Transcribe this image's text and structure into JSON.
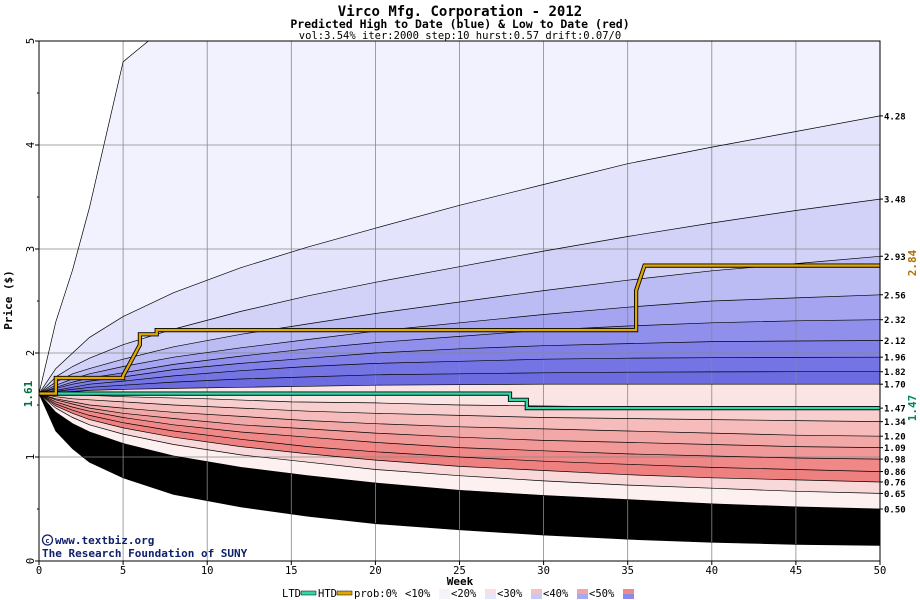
{
  "chart_data": {
    "type": "area",
    "title": "Virco Mfg. Corporation - 2012",
    "subtitle": "Predicted High to Date (blue) &  Low to Date (red)",
    "params": "vol:3.54% iter:2000 step:10 hurst:0.57 drift:0.07/0",
    "xlabel": "Week",
    "ylabel": "Price ($)",
    "xlim": [
      0,
      50
    ],
    "ylim": [
      0,
      5
    ],
    "x_ticks": [
      "0",
      "5",
      "10",
      "15",
      "20",
      "25",
      "30",
      "35",
      "40",
      "45",
      "50"
    ],
    "y_ticks": [
      "0",
      "1",
      "2",
      "3",
      "4",
      "5"
    ],
    "grid": true,
    "start_price_label": "1.61",
    "start_price": 1.61,
    "htd_end_label": "2.84",
    "ltd_end_label": "1.47",
    "right_labels": [
      "4.28",
      "3.48",
      "2.93",
      "2.56",
      "2.32",
      "2.12",
      "1.96",
      "1.82",
      "1.70",
      "1.47",
      "1.34",
      "1.20",
      "1.09",
      "0.98",
      "0.86",
      "0.76",
      "0.65",
      "0.50"
    ],
    "upper_quantiles": [
      {
        "x": [
          0,
          1,
          2,
          3,
          5,
          8,
          12,
          16,
          20,
          25,
          30,
          35,
          40,
          45,
          50
        ],
        "y": [
          1.61,
          2.3,
          2.8,
          3.4,
          4.8,
          5.2,
          5.2,
          5.2,
          5.2,
          5.2,
          5.2,
          5.2,
          5.2,
          5.2,
          5.2
        ]
      },
      {
        "x": [
          0,
          1,
          2,
          3,
          5,
          8,
          12,
          16,
          20,
          25,
          30,
          35,
          40,
          45,
          50
        ],
        "y": [
          1.61,
          1.85,
          2.0,
          2.15,
          2.35,
          2.58,
          2.82,
          3.02,
          3.2,
          3.42,
          3.62,
          3.82,
          3.98,
          4.13,
          4.28
        ]
      },
      {
        "x": [
          0,
          1,
          2,
          3,
          5,
          8,
          12,
          16,
          20,
          25,
          30,
          35,
          40,
          45,
          50
        ],
        "y": [
          1.61,
          1.77,
          1.87,
          1.95,
          2.08,
          2.23,
          2.4,
          2.55,
          2.68,
          2.83,
          2.98,
          3.12,
          3.25,
          3.37,
          3.48
        ]
      },
      {
        "x": [
          0,
          1,
          2,
          3,
          5,
          8,
          12,
          16,
          20,
          25,
          30,
          35,
          40,
          45,
          50
        ],
        "y": [
          1.61,
          1.72,
          1.8,
          1.85,
          1.94,
          2.06,
          2.18,
          2.28,
          2.38,
          2.49,
          2.6,
          2.7,
          2.79,
          2.86,
          2.93
        ]
      },
      {
        "x": [
          0,
          1,
          2,
          3,
          5,
          8,
          12,
          16,
          20,
          25,
          30,
          35,
          40,
          45,
          50
        ],
        "y": [
          1.61,
          1.69,
          1.75,
          1.8,
          1.87,
          1.96,
          2.05,
          2.13,
          2.21,
          2.29,
          2.37,
          2.44,
          2.5,
          2.53,
          2.56
        ]
      },
      {
        "x": [
          0,
          1,
          2,
          3,
          5,
          8,
          12,
          16,
          20,
          25,
          30,
          35,
          40,
          45,
          50
        ],
        "y": [
          1.61,
          1.67,
          1.72,
          1.76,
          1.81,
          1.89,
          1.97,
          2.04,
          2.1,
          2.16,
          2.22,
          2.26,
          2.29,
          2.31,
          2.32
        ]
      },
      {
        "x": [
          0,
          1,
          2,
          3,
          5,
          8,
          12,
          16,
          20,
          25,
          30,
          35,
          40,
          45,
          50
        ],
        "y": [
          1.61,
          1.66,
          1.7,
          1.73,
          1.77,
          1.84,
          1.9,
          1.95,
          2.0,
          2.04,
          2.07,
          2.09,
          2.11,
          2.115,
          2.12
        ]
      },
      {
        "x": [
          0,
          1,
          2,
          3,
          5,
          8,
          12,
          16,
          20,
          25,
          30,
          35,
          40,
          45,
          50
        ],
        "y": [
          1.61,
          1.64,
          1.67,
          1.7,
          1.73,
          1.78,
          1.83,
          1.87,
          1.9,
          1.92,
          1.94,
          1.95,
          1.955,
          1.958,
          1.96
        ]
      },
      {
        "x": [
          0,
          1,
          2,
          3,
          5,
          8,
          12,
          16,
          20,
          25,
          30,
          35,
          40,
          45,
          50
        ],
        "y": [
          1.61,
          1.63,
          1.65,
          1.67,
          1.69,
          1.72,
          1.75,
          1.77,
          1.79,
          1.8,
          1.81,
          1.815,
          1.818,
          1.82,
          1.82
        ]
      },
      {
        "x": [
          0,
          1,
          2,
          3,
          5,
          8,
          12,
          16,
          20,
          25,
          30,
          35,
          40,
          45,
          50
        ],
        "y": [
          1.61,
          1.62,
          1.63,
          1.64,
          1.65,
          1.66,
          1.67,
          1.68,
          1.69,
          1.695,
          1.7,
          1.7,
          1.7,
          1.7,
          1.7
        ]
      }
    ],
    "lower_quantiles": [
      {
        "x": [
          0,
          2,
          5,
          10,
          15,
          20,
          25,
          30,
          35,
          40,
          42
        ],
        "y": [
          1.61,
          1.6,
          1.58,
          1.56,
          1.53,
          1.52,
          1.5,
          1.49,
          1.48,
          1.47,
          1.47
        ]
      },
      {
        "x": [
          0,
          1,
          2,
          3,
          5,
          8,
          12,
          16,
          20,
          25,
          30,
          35,
          40,
          45,
          50
        ],
        "y": [
          1.61,
          1.58,
          1.56,
          1.55,
          1.53,
          1.5,
          1.47,
          1.44,
          1.42,
          1.4,
          1.38,
          1.37,
          1.36,
          1.35,
          1.34
        ]
      },
      {
        "x": [
          0,
          1,
          2,
          3,
          5,
          8,
          12,
          16,
          20,
          25,
          30,
          35,
          40,
          45,
          50
        ],
        "y": [
          1.61,
          1.56,
          1.53,
          1.5,
          1.47,
          1.43,
          1.39,
          1.35,
          1.32,
          1.29,
          1.27,
          1.25,
          1.23,
          1.21,
          1.2
        ]
      },
      {
        "x": [
          0,
          1,
          2,
          3,
          5,
          8,
          12,
          16,
          20,
          25,
          30,
          35,
          40,
          45,
          50
        ],
        "y": [
          1.61,
          1.55,
          1.51,
          1.47,
          1.42,
          1.37,
          1.31,
          1.27,
          1.23,
          1.19,
          1.16,
          1.14,
          1.12,
          1.1,
          1.09
        ]
      },
      {
        "x": [
          0,
          1,
          2,
          3,
          5,
          8,
          12,
          16,
          20,
          25,
          30,
          35,
          40,
          45,
          50
        ],
        "y": [
          1.61,
          1.53,
          1.48,
          1.44,
          1.38,
          1.31,
          1.24,
          1.19,
          1.14,
          1.09,
          1.06,
          1.03,
          1.01,
          0.99,
          0.98
        ]
      },
      {
        "x": [
          0,
          1,
          2,
          3,
          5,
          8,
          12,
          16,
          20,
          25,
          30,
          35,
          40,
          45,
          50
        ],
        "y": [
          1.61,
          1.51,
          1.45,
          1.4,
          1.33,
          1.25,
          1.17,
          1.1,
          1.05,
          1.0,
          0.96,
          0.93,
          0.9,
          0.88,
          0.86
        ]
      },
      {
        "x": [
          0,
          1,
          2,
          3,
          5,
          8,
          12,
          16,
          20,
          25,
          30,
          35,
          40,
          45,
          50
        ],
        "y": [
          1.61,
          1.49,
          1.42,
          1.36,
          1.28,
          1.19,
          1.1,
          1.03,
          0.97,
          0.91,
          0.87,
          0.83,
          0.8,
          0.78,
          0.76
        ]
      },
      {
        "x": [
          0,
          1,
          2,
          3,
          5,
          8,
          12,
          16,
          20,
          25,
          30,
          35,
          40,
          45,
          50
        ],
        "y": [
          1.61,
          1.47,
          1.38,
          1.31,
          1.22,
          1.12,
          1.02,
          0.95,
          0.88,
          0.82,
          0.77,
          0.73,
          0.7,
          0.67,
          0.65
        ]
      },
      {
        "x": [
          0,
          1,
          2,
          3,
          5,
          8,
          12,
          16,
          20,
          25,
          30,
          35,
          40,
          45,
          50
        ],
        "y": [
          1.61,
          1.43,
          1.32,
          1.24,
          1.13,
          1.01,
          0.9,
          0.82,
          0.75,
          0.68,
          0.63,
          0.59,
          0.55,
          0.52,
          0.5
        ]
      },
      {
        "x": [
          0,
          1,
          2,
          3,
          5,
          8,
          12,
          16,
          20,
          25,
          30,
          35,
          40,
          45,
          50
        ],
        "y": [
          1.61,
          1.25,
          1.08,
          0.95,
          0.8,
          0.64,
          0.52,
          0.43,
          0.36,
          0.3,
          0.25,
          0.21,
          0.18,
          0.16,
          0.15
        ]
      }
    ],
    "htd_path": {
      "x": [
        0,
        1,
        1,
        5,
        5,
        6,
        6,
        7,
        7,
        35.5,
        35.5,
        36,
        50
      ],
      "y": [
        1.61,
        1.61,
        1.76,
        1.76,
        1.78,
        2.08,
        2.18,
        2.18,
        2.22,
        2.22,
        2.6,
        2.84,
        2.84
      ]
    },
    "ltd_path": {
      "x": [
        0,
        28,
        28,
        29,
        29,
        50
      ],
      "y": [
        1.61,
        1.61,
        1.55,
        1.55,
        1.47,
        1.47
      ]
    },
    "watermark_line1": "www.textbiz.org",
    "watermark_line2": "The Research Foundation of SUNY",
    "legend": {
      "ltd_label": "LTD",
      "htd_label": "HTD",
      "prob_label": "prob:0%",
      "bins": [
        "<10%",
        "<20%",
        "<30%",
        "<40%",
        "<50%"
      ]
    },
    "colors": {
      "htd": "#e0a800",
      "ltd": "#30d8a8",
      "blue_bands": [
        "#f2f2ff",
        "#e3e3fc",
        "#d2d2f8",
        "#bcbcf4",
        "#a4a4f0",
        "#9090ec",
        "#8080e8",
        "#7474e4",
        "#6c6ce0"
      ],
      "red_bands": [
        "#fbe4e4",
        "#f8cfcf",
        "#f6bcbc",
        "#f3a8a8",
        "#f19898",
        "#f08888",
        "#ef8080",
        "#f8d8d8",
        "#fdf0f0"
      ],
      "start_label": "#007040",
      "htd_label": "#b07000",
      "ltd_label": "#008860"
    }
  }
}
